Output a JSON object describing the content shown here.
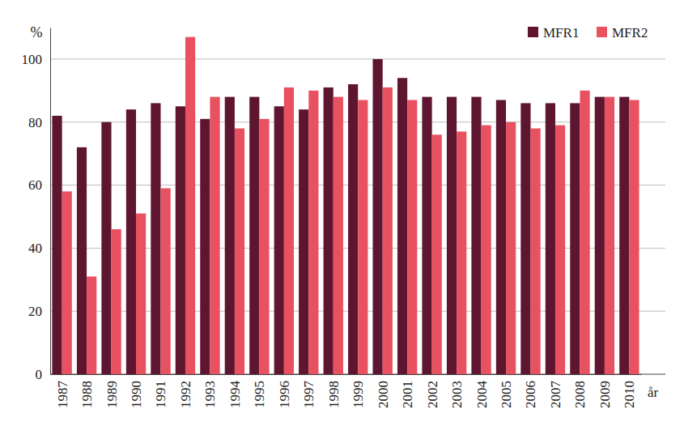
{
  "chart_data": {
    "type": "bar",
    "y_label": "%",
    "x_label": "år",
    "categories": [
      "1987",
      "1988",
      "1989",
      "1990",
      "1991",
      "1992",
      "1993",
      "1994",
      "1995",
      "1996",
      "1997",
      "1998",
      "1999",
      "2000",
      "2001",
      "2002",
      "2003",
      "2004",
      "2005",
      "2006",
      "2007",
      "2008",
      "2009",
      "2010"
    ],
    "series": [
      {
        "name": "MFR1",
        "color": "#5e1530",
        "values": [
          82,
          72,
          80,
          84,
          86,
          85,
          81,
          88,
          88,
          85,
          84,
          91,
          92,
          100,
          94,
          88,
          88,
          88,
          87,
          86,
          86,
          86,
          88,
          88
        ]
      },
      {
        "name": "MFR2",
        "color": "#e8515f",
        "values": [
          58,
          31,
          46,
          51,
          59,
          107,
          88,
          78,
          81,
          91,
          90,
          88,
          87,
          91,
          87,
          76,
          77,
          79,
          80,
          78,
          79,
          90,
          88,
          87
        ]
      }
    ],
    "ylim": [
      0,
      110
    ],
    "yticks": [
      0,
      20,
      40,
      60,
      80,
      100
    ],
    "grid": true,
    "legend": "top-right"
  }
}
